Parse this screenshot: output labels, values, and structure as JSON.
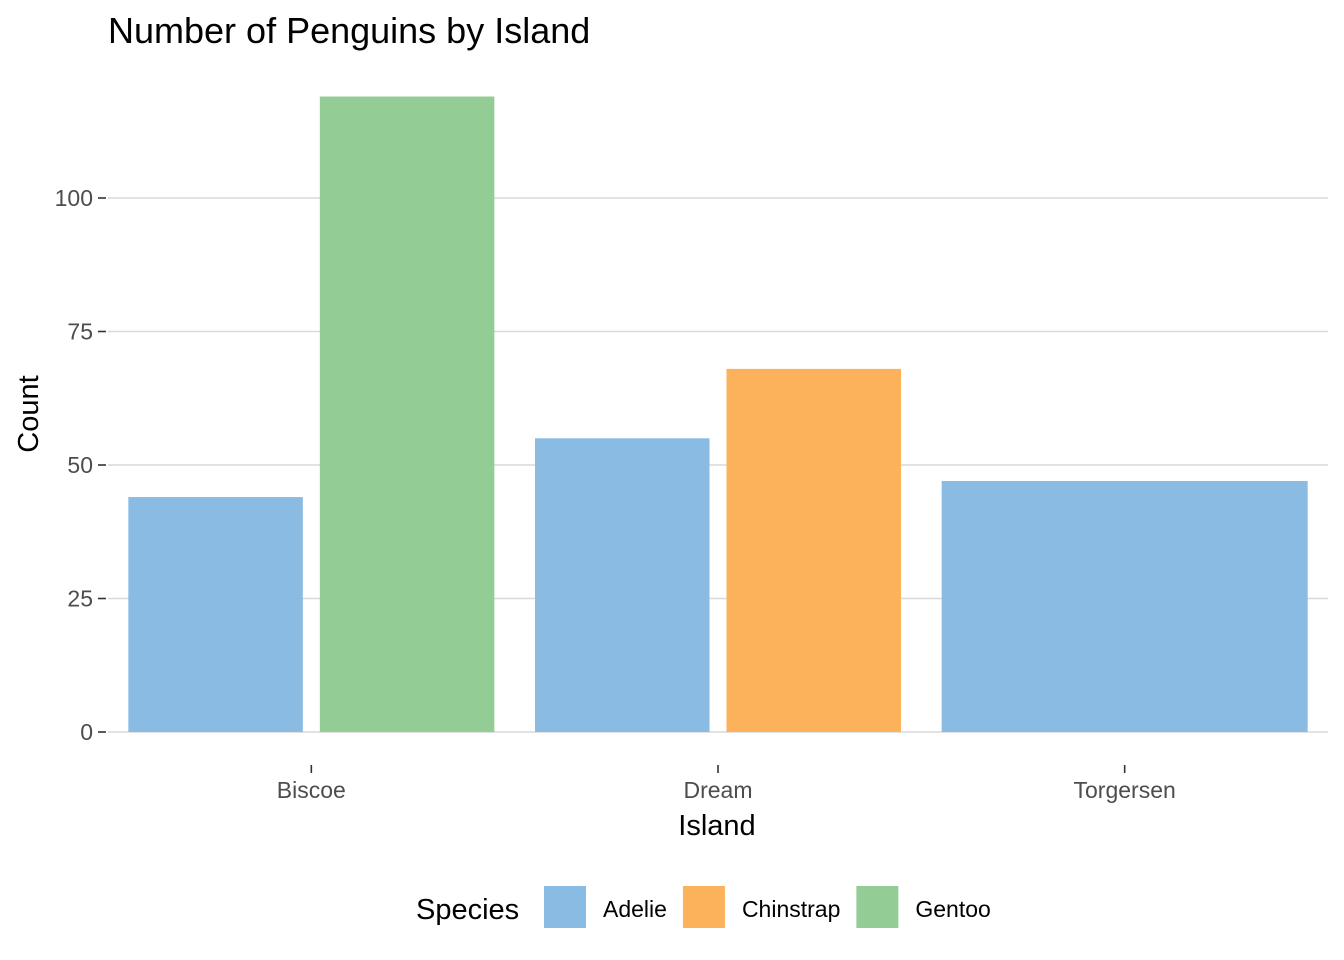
{
  "chart_data": {
    "type": "bar",
    "title": "Number of Penguins by Island",
    "xlabel": "Island",
    "ylabel": "Count",
    "categories": [
      "Biscoe",
      "Dream",
      "Torgersen"
    ],
    "yticks": [
      0,
      25,
      50,
      75,
      100
    ],
    "ylim": [
      0,
      119
    ],
    "grid": true,
    "legend": {
      "title": "Species",
      "position": "bottom"
    },
    "series": [
      {
        "name": "Adelie",
        "color": "#89bbe3",
        "values": [
          44,
          55,
          47
        ]
      },
      {
        "name": "Chinstrap",
        "color": "#fbb25a",
        "values": [
          null,
          68,
          null
        ]
      },
      {
        "name": "Gentoo",
        "color": "#93cc95",
        "values": [
          119,
          null,
          null
        ]
      }
    ]
  }
}
